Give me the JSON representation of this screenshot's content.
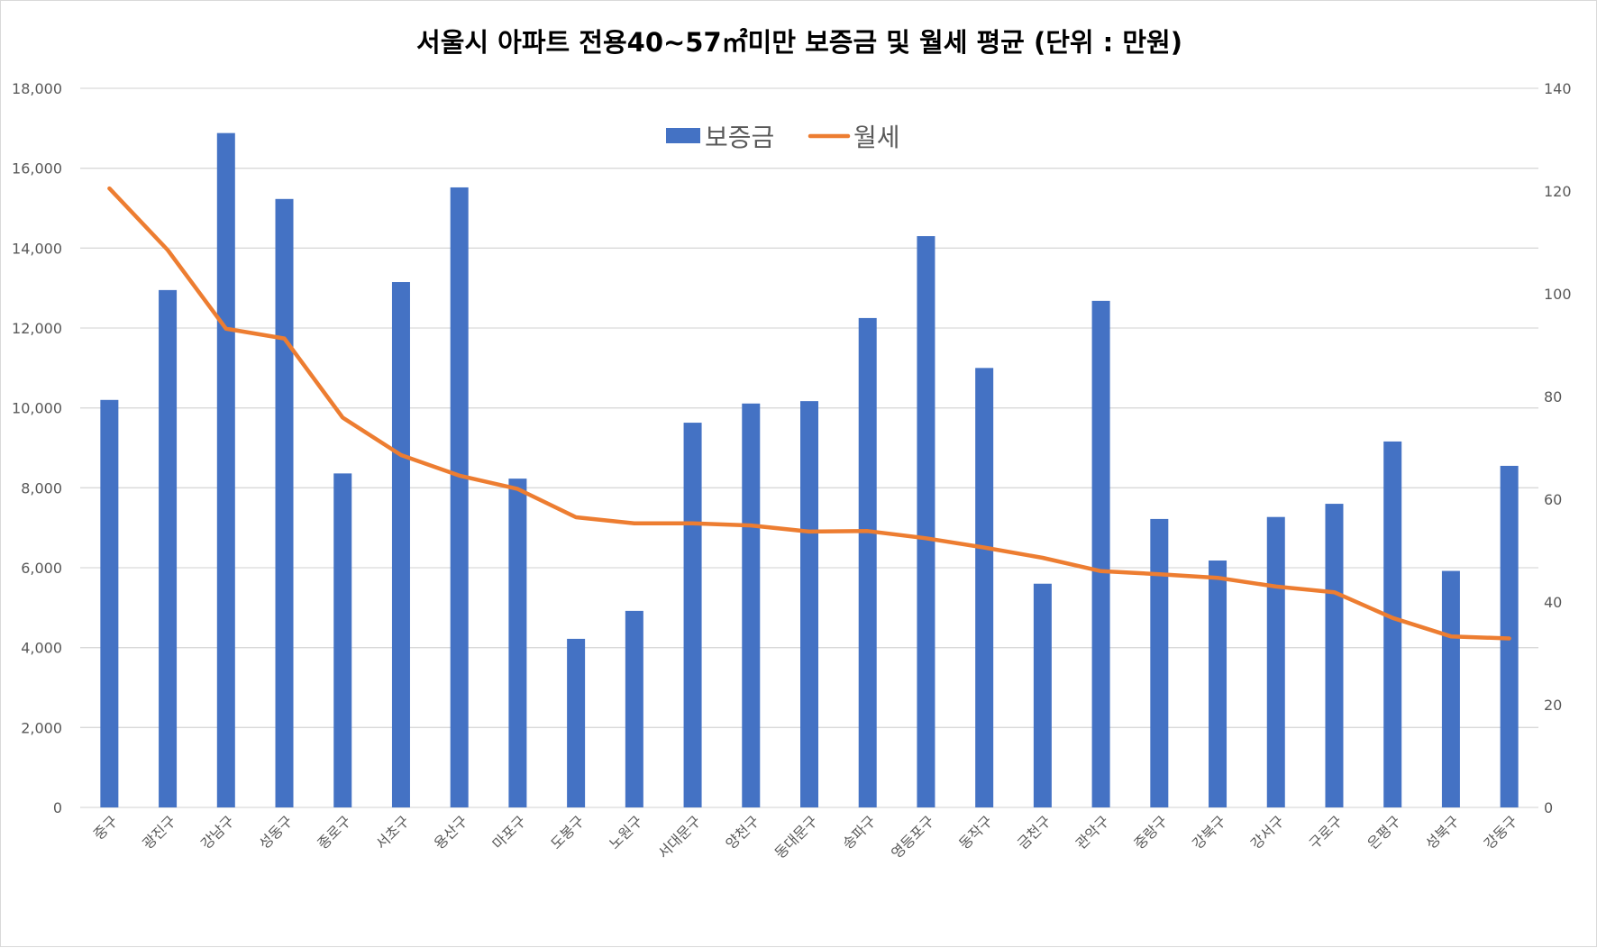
{
  "chart_data": {
    "type": "bar",
    "title": "서울시 아파트 전용40~57㎡미만 보증금 및 월세 평균 (단위 : 만원)",
    "categories": [
      "중구",
      "광진구",
      "강남구",
      "성동구",
      "종로구",
      "서초구",
      "용산구",
      "마포구",
      "도봉구",
      "노원구",
      "서대문구",
      "양천구",
      "동대문구",
      "송파구",
      "영등포구",
      "동작구",
      "금천구",
      "관악구",
      "중랑구",
      "강북구",
      "강서구",
      "구로구",
      "은평구",
      "성북구",
      "강동구"
    ],
    "series": [
      {
        "name": "보증금",
        "type": "bar",
        "axis": "left",
        "color": "#4472C4",
        "values": [
          10200,
          12950,
          16880,
          15230,
          8360,
          13150,
          15520,
          8230,
          4220,
          4920,
          9630,
          10110,
          10170,
          12250,
          14300,
          11000,
          5600,
          12680,
          7220,
          6180,
          7270,
          7600,
          9160,
          5920,
          8550
        ]
      },
      {
        "name": "월세",
        "type": "line",
        "axis": "right",
        "color": "#ED7D31",
        "values": [
          120.5,
          108.5,
          93.2,
          91.3,
          75.9,
          68.6,
          64.6,
          62.0,
          56.5,
          55.3,
          55.3,
          54.9,
          53.7,
          53.8,
          52.4,
          50.6,
          48.6,
          46.0,
          45.4,
          44.7,
          43.0,
          41.9,
          36.9,
          33.3,
          32.9
        ]
      }
    ],
    "y_left": {
      "min": 0,
      "max": 18000,
      "ticks": [
        "0",
        "2,000",
        "4,000",
        "6,000",
        "8,000",
        "10,000",
        "12,000",
        "14,000",
        "16,000",
        "18,000"
      ]
    },
    "y_right": {
      "min": 0,
      "max": 140,
      "ticks": [
        "0",
        "20",
        "40",
        "60",
        "80",
        "100",
        "120",
        "140"
      ]
    },
    "grid": true,
    "legend_position": "top-center"
  }
}
